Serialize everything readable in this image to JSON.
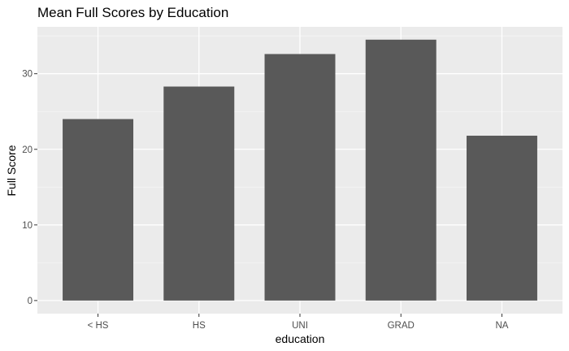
{
  "chart_data": {
    "type": "bar",
    "title": "Mean Full Scores by Education",
    "xlabel": "education",
    "ylabel": "Full Score",
    "categories": [
      "< HS",
      "HS",
      "UNI",
      "GRAD",
      "NA"
    ],
    "values": [
      24.0,
      28.3,
      32.6,
      34.5,
      21.8
    ],
    "ylim": [
      -1.73,
      36.2
    ],
    "yticks": [
      0,
      10,
      20,
      30
    ],
    "grid": true,
    "legend": "none",
    "colors": {
      "bar": "#595959",
      "panel": "#ebebeb",
      "grid_major": "#ffffff",
      "grid_minor": "#f5f5f5"
    }
  }
}
